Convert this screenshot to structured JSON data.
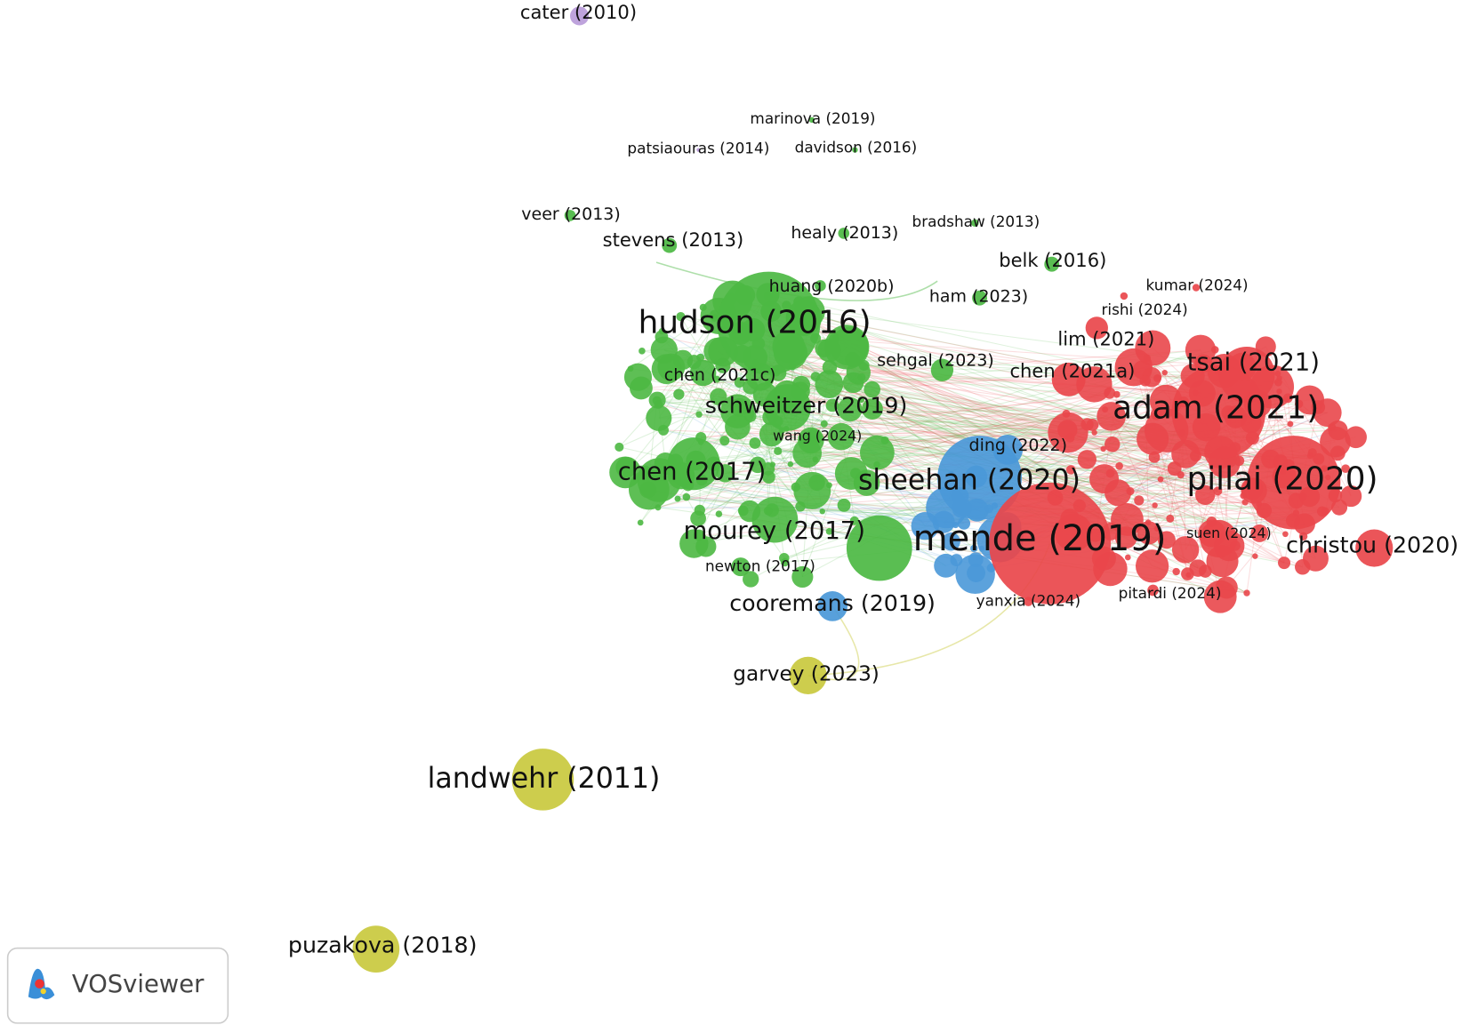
{
  "nodes": [
    {
      "label": "cater (2010)"
    },
    {
      "label": "marinova (2019)"
    },
    {
      "label": "patsiaouras (2014)"
    },
    {
      "label": "davidson (2016)"
    },
    {
      "label": "veer (2013)"
    },
    {
      "label": "stevens (2013)"
    },
    {
      "label": "healy (2013)"
    },
    {
      "label": "bradshaw (2013)"
    },
    {
      "label": "belk (2016)"
    },
    {
      "label": "huang (2020b)"
    },
    {
      "label": "ham (2023)"
    },
    {
      "label": "kumar (2024)"
    },
    {
      "label": "rishi (2024)"
    },
    {
      "label": "hudson (2016)"
    },
    {
      "label": "lim (2021)"
    },
    {
      "label": "tsai (2021)"
    },
    {
      "label": "chen (2021c)"
    },
    {
      "label": "sehgal (2023)"
    },
    {
      "label": "chen (2021a)"
    },
    {
      "label": "adam (2021)"
    },
    {
      "label": "schweitzer (2019)"
    },
    {
      "label": "wang (2024)"
    },
    {
      "label": "ding (2022)"
    },
    {
      "label": "chen (2017)"
    },
    {
      "label": "sheehan (2020)"
    },
    {
      "label": "pillai (2020)"
    },
    {
      "label": "mourey (2017)"
    },
    {
      "label": "mende (2019)"
    },
    {
      "label": "suen (2024)"
    },
    {
      "label": "christou (2020)"
    },
    {
      "label": "newton (2017)"
    },
    {
      "label": "cooremans (2019)"
    },
    {
      "label": "yanxia (2024)"
    },
    {
      "label": "pitardi (2024)"
    },
    {
      "label": "garvey (2023)"
    },
    {
      "label": "landwehr (2011)"
    },
    {
      "label": "puzakova (2018)"
    }
  ],
  "logo": {
    "text": "VOSviewer"
  }
}
